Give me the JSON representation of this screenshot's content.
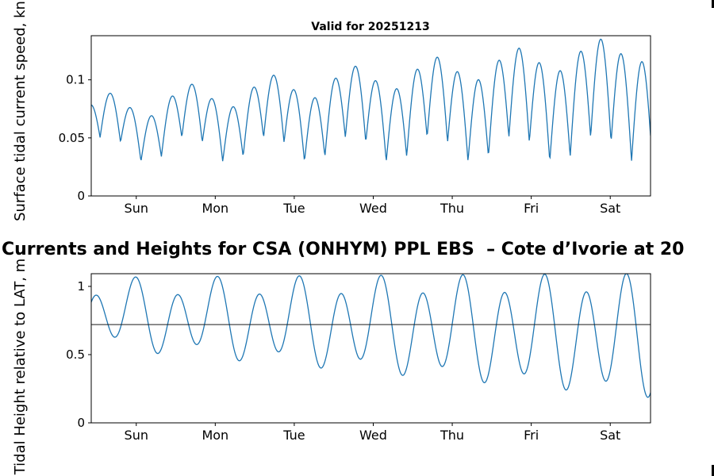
{
  "figure": {
    "main_title": "Currents and Heights for CSA (ONHYM) PPL EBS  – Cote d’Ivorie at 20",
    "background": "#ffffff",
    "axis_color": "#000000"
  },
  "chart_data": [
    {
      "id": "surface-current-speed",
      "type": "line",
      "title": "Valid for 20251213",
      "ylabel": "Surface tidal current speed, kn",
      "xlabel": "",
      "grid": false,
      "legend": "none",
      "line_color": "#1f77b4",
      "x_range_days": [
        0,
        7.08
      ],
      "ylim": [
        0,
        0.138
      ],
      "x_ticks": {
        "positions_days": [
          0.57,
          1.57,
          2.57,
          3.57,
          4.57,
          5.57,
          6.57
        ],
        "labels": [
          "Sun",
          "Mon",
          "Tue",
          "Wed",
          "Thu",
          "Fri",
          "Sat"
        ]
      },
      "y_ticks": {
        "values": [
          0,
          0.05,
          0.1
        ],
        "labels": [
          "0",
          "0.05",
          "0.1"
        ]
      },
      "value_summary": {
        "min_kn": 0.033,
        "max_kn": 0.128,
        "oscillation_peaks_per_day": 3.9,
        "trend": "peak speeds grow from about 0.075 kn on Sun to about 0.13 kn by Fri-Sat"
      },
      "series_model": {
        "mid0": 0.04,
        "mid_slope_per_day": 0,
        "amp0": 0.035,
        "amp_growth_per_day": 0.0075,
        "period_days": 0.5175,
        "phase_days": 0.5,
        "abs_value": true,
        "diurnal_amp": 0.012,
        "diurnal_period_days": 1.0351,
        "diurnal_phase_days": 0.2
      }
    },
    {
      "id": "tidal-height",
      "type": "line",
      "title": "",
      "ylabel": "Tidal Height relative to LAT, m",
      "xlabel": "",
      "grid": false,
      "legend": "none",
      "line_color": "#1f77b4",
      "x_range_days": [
        0,
        7.08
      ],
      "ylim": [
        0,
        1.093
      ],
      "x_ticks": {
        "positions_days": [
          0.57,
          1.57,
          2.57,
          3.57,
          4.57,
          5.57,
          6.57
        ],
        "labels": [
          "Sun",
          "Mon",
          "Tue",
          "Wed",
          "Thu",
          "Fri",
          "Sat"
        ]
      },
      "y_ticks": {
        "values": [
          0,
          0.5,
          1
        ],
        "labels": [
          "0",
          "0.5",
          "1"
        ]
      },
      "reference_line": {
        "value": 0.72,
        "color": "#1a1a1a"
      },
      "value_summary": {
        "min_m": 0.17,
        "max_m": 1.09,
        "high_waters_m": "about 1.05-1.09 all week, alternating with lower highs near 0.85-0.98",
        "low_waters_m": "shoal from about 0.57 on Sun to about 0.18 by Sat (neap to spring)",
        "oscillation_peaks_per_day": 1.9
      },
      "series_model": {
        "mid0": 0.8,
        "mid_slope_per_day": -0.024,
        "amp0": 0.2,
        "amp_growth_per_day": 0.028,
        "period_days": 0.5175,
        "phase_days": 0.57,
        "abs_value": false,
        "diurnal_amp": 0.08,
        "diurnal_period_days": 1.0351,
        "diurnal_phase_days": 0.47
      }
    }
  ]
}
